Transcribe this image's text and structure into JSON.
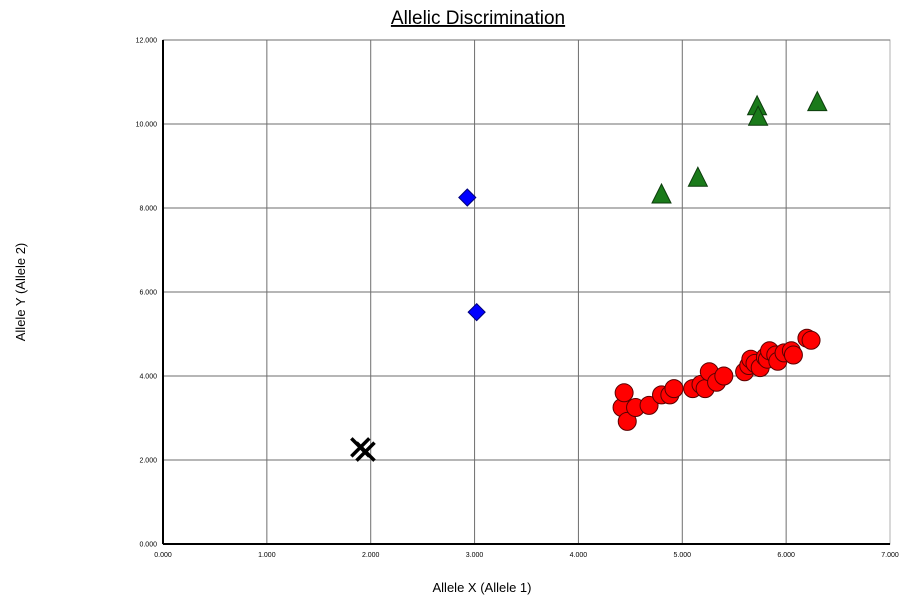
{
  "chart_data": {
    "type": "scatter",
    "title": "Allelic Discrimination",
    "xlabel": "Allele X (Allele 1)",
    "ylabel": "Allele Y (Allele 2)",
    "xlim": [
      0,
      7
    ],
    "ylim": [
      0,
      12
    ],
    "xticks": [
      "0.000",
      "1.000",
      "2.000",
      "3.000",
      "4.000",
      "5.000",
      "6.000",
      "7.000"
    ],
    "yticks": [
      "0.000",
      "2.000",
      "4.000",
      "6.000",
      "8.000",
      "10.000",
      "12.000"
    ],
    "grid": true,
    "series": [
      {
        "marker": "x",
        "color": "#000000",
        "points": [
          [
            1.9,
            2.3
          ],
          [
            1.95,
            2.2
          ]
        ]
      },
      {
        "marker": "diamond",
        "color": "#0000ff",
        "points": [
          [
            2.93,
            8.25
          ],
          [
            3.02,
            5.52
          ]
        ]
      },
      {
        "marker": "triangle",
        "color": "#1a7a1a",
        "points": [
          [
            4.8,
            8.3
          ],
          [
            5.15,
            8.7
          ],
          [
            5.72,
            10.4
          ],
          [
            5.73,
            10.15
          ],
          [
            6.3,
            10.5
          ]
        ]
      },
      {
        "marker": "circle",
        "color": "#ff0000",
        "points": [
          [
            4.42,
            3.25
          ],
          [
            4.44,
            3.6
          ],
          [
            4.47,
            2.92
          ],
          [
            4.55,
            3.25
          ],
          [
            4.68,
            3.3
          ],
          [
            4.8,
            3.55
          ],
          [
            4.88,
            3.55
          ],
          [
            4.92,
            3.7
          ],
          [
            5.1,
            3.7
          ],
          [
            5.18,
            3.8
          ],
          [
            5.22,
            3.7
          ],
          [
            5.26,
            4.1
          ],
          [
            5.33,
            3.85
          ],
          [
            5.4,
            4.0
          ],
          [
            5.6,
            4.1
          ],
          [
            5.64,
            4.25
          ],
          [
            5.66,
            4.4
          ],
          [
            5.7,
            4.3
          ],
          [
            5.75,
            4.2
          ],
          [
            5.8,
            4.45
          ],
          [
            5.82,
            4.4
          ],
          [
            5.84,
            4.6
          ],
          [
            5.9,
            4.5
          ],
          [
            5.92,
            4.35
          ],
          [
            5.98,
            4.55
          ],
          [
            6.05,
            4.6
          ],
          [
            6.07,
            4.5
          ],
          [
            6.2,
            4.9
          ],
          [
            6.24,
            4.85
          ]
        ]
      }
    ]
  }
}
